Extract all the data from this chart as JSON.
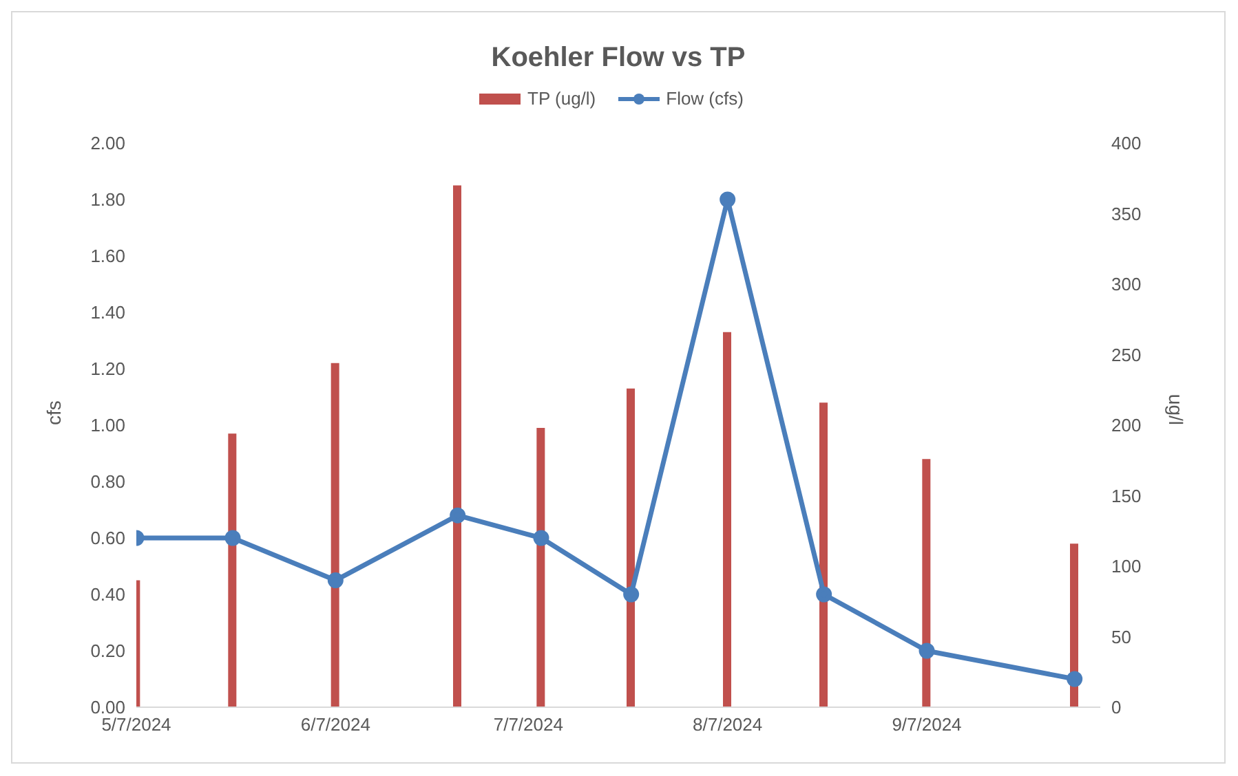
{
  "chart_data": {
    "type": "bar",
    "title": "Koehler Flow vs TP",
    "ylabel": "cfs",
    "y2label": "ug/l",
    "x": [
      "2024-05-07",
      "2024-05-22",
      "2024-06-07",
      "2024-06-26",
      "2024-07-09",
      "2024-07-23",
      "2024-08-07",
      "2024-08-22",
      "2024-09-07",
      "2024-09-30"
    ],
    "series": [
      {
        "name": "TP (ug/l)",
        "axis": "y2",
        "color": "#c0504d",
        "values": [
          90,
          194,
          244,
          370,
          198,
          226,
          266,
          216,
          176,
          116
        ]
      },
      {
        "name": "Flow (cfs)",
        "type": "line",
        "axis": "y",
        "color": "#4a7ebb",
        "marker": "circle",
        "values": [
          0.6,
          0.6,
          0.45,
          0.68,
          0.6,
          0.4,
          1.8,
          0.4,
          0.2,
          0.1
        ]
      }
    ],
    "xlim": [
      "2024-05-07",
      "2024-10-04"
    ],
    "xticks": [
      {
        "value": "2024-05-07",
        "label": "5/7/2024"
      },
      {
        "value": "2024-06-07",
        "label": "6/7/2024"
      },
      {
        "value": "2024-07-07",
        "label": "7/7/2024"
      },
      {
        "value": "2024-08-07",
        "label": "8/7/2024"
      },
      {
        "value": "2024-09-07",
        "label": "9/7/2024"
      }
    ],
    "ylim": [
      0,
      2
    ],
    "yticks": [
      {
        "value": 0,
        "label": "0.00"
      },
      {
        "value": 0.2,
        "label": "0.20"
      },
      {
        "value": 0.4,
        "label": "0.40"
      },
      {
        "value": 0.6,
        "label": "0.60"
      },
      {
        "value": 0.8,
        "label": "0.80"
      },
      {
        "value": 1,
        "label": "1.00"
      },
      {
        "value": 1.2,
        "label": "1.20"
      },
      {
        "value": 1.4,
        "label": "1.40"
      },
      {
        "value": 1.6,
        "label": "1.60"
      },
      {
        "value": 1.8,
        "label": "1.80"
      },
      {
        "value": 2,
        "label": "2.00"
      }
    ],
    "y2lim": [
      0,
      400
    ],
    "y2ticks": [
      0,
      50,
      100,
      150,
      200,
      250,
      300,
      350,
      400
    ],
    "legend": "top",
    "grid": false
  }
}
